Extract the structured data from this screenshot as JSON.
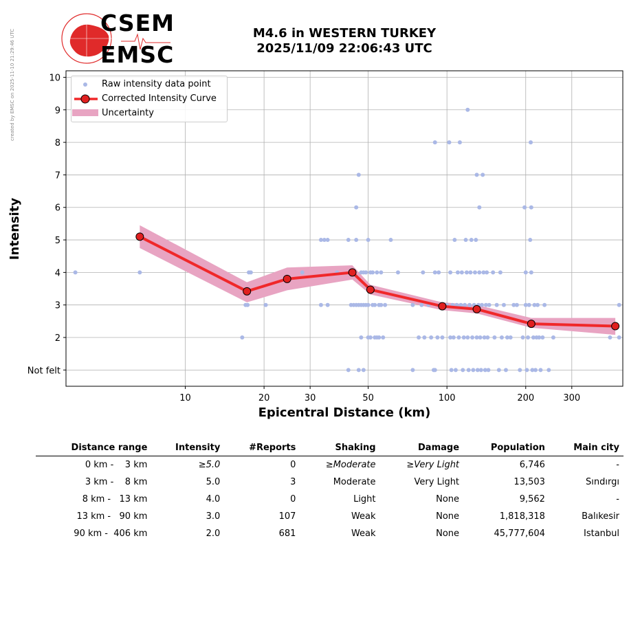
{
  "watermark": "created by EMSC on 2025-11-10 21:29:46 UTC",
  "logo": {
    "line1": "CSEM",
    "line2": "EMSC"
  },
  "title": {
    "line1": "M4.6 in WESTERN TURKEY",
    "line2": "2025/11/09 22:06:43 UTC"
  },
  "legend": {
    "raw": "Raw intensity data point",
    "curve": "Corrected Intensity Curve",
    "uncertainty": "Uncertainty"
  },
  "colors": {
    "raw": "#aab8e6",
    "curve": "#f0282a",
    "marker": "#e02020",
    "uncertainty": "#e8a4c2",
    "grid": "#b0b0b0"
  },
  "chart_data": {
    "type": "scatter",
    "xlabel": "Epicentral Distance (km)",
    "ylabel": "Intensity",
    "x_scale": "log",
    "xlim": [
      3.5,
      470
    ],
    "ylim": [
      0.5,
      10.2
    ],
    "x_ticks": [
      10,
      20,
      30,
      50,
      100,
      200,
      300
    ],
    "y_ticks": [
      {
        "value": 1,
        "label": "Not felt"
      },
      {
        "value": 2,
        "label": "2"
      },
      {
        "value": 3,
        "label": "3"
      },
      {
        "value": 4,
        "label": "4"
      },
      {
        "value": 5,
        "label": "5"
      },
      {
        "value": 6,
        "label": "6"
      },
      {
        "value": 7,
        "label": "7"
      },
      {
        "value": 8,
        "label": "8"
      },
      {
        "value": 9,
        "label": "9"
      },
      {
        "value": 10,
        "label": "10"
      }
    ],
    "grid": true,
    "legend_position": "top-left",
    "curve": {
      "x": [
        6.7,
        17.2,
        24.5,
        43.5,
        51,
        96,
        130,
        210,
        440
      ],
      "y": [
        5.1,
        3.42,
        3.8,
        4.0,
        3.47,
        2.96,
        2.87,
        2.42,
        2.35
      ],
      "upper": [
        5.45,
        3.7,
        4.15,
        4.22,
        3.62,
        3.08,
        3.0,
        2.6,
        2.6
      ],
      "lower": [
        4.75,
        3.08,
        3.45,
        3.78,
        3.32,
        2.84,
        2.74,
        2.3,
        2.08
      ]
    },
    "raw_points": [
      {
        "x": 3.8,
        "y": 4
      },
      {
        "x": 6.7,
        "y": 4
      },
      {
        "x": 16.5,
        "y": 2
      },
      {
        "x": 17,
        "y": 3
      },
      {
        "x": 17.3,
        "y": 3
      },
      {
        "x": 17.5,
        "y": 4
      },
      {
        "x": 17.8,
        "y": 4
      },
      {
        "x": 20.3,
        "y": 3
      },
      {
        "x": 28,
        "y": 4
      },
      {
        "x": 33,
        "y": 3
      },
      {
        "x": 33,
        "y": 5
      },
      {
        "x": 34,
        "y": 5
      },
      {
        "x": 35,
        "y": 3
      },
      {
        "x": 35,
        "y": 5
      },
      {
        "x": 38,
        "y": 4
      },
      {
        "x": 42,
        "y": 1
      },
      {
        "x": 42,
        "y": 5
      },
      {
        "x": 43,
        "y": 3
      },
      {
        "x": 44,
        "y": 3
      },
      {
        "x": 45,
        "y": 3
      },
      {
        "x": 45,
        "y": 5
      },
      {
        "x": 45,
        "y": 6
      },
      {
        "x": 46,
        "y": 3
      },
      {
        "x": 46,
        "y": 7
      },
      {
        "x": 46,
        "y": 1
      },
      {
        "x": 47,
        "y": 2
      },
      {
        "x": 47,
        "y": 3
      },
      {
        "x": 47,
        "y": 4
      },
      {
        "x": 48,
        "y": 1
      },
      {
        "x": 48,
        "y": 3
      },
      {
        "x": 48,
        "y": 4
      },
      {
        "x": 49,
        "y": 3
      },
      {
        "x": 49,
        "y": 4
      },
      {
        "x": 50,
        "y": 5
      },
      {
        "x": 50,
        "y": 2
      },
      {
        "x": 50,
        "y": 3
      },
      {
        "x": 51,
        "y": 4
      },
      {
        "x": 51,
        "y": 2
      },
      {
        "x": 52,
        "y": 3
      },
      {
        "x": 52,
        "y": 4
      },
      {
        "x": 53,
        "y": 2
      },
      {
        "x": 53,
        "y": 3
      },
      {
        "x": 54,
        "y": 4
      },
      {
        "x": 54,
        "y": 2
      },
      {
        "x": 55,
        "y": 3
      },
      {
        "x": 55,
        "y": 2
      },
      {
        "x": 56,
        "y": 3
      },
      {
        "x": 56,
        "y": 4
      },
      {
        "x": 57,
        "y": 2
      },
      {
        "x": 58,
        "y": 3
      },
      {
        "x": 61,
        "y": 5
      },
      {
        "x": 65,
        "y": 4
      },
      {
        "x": 74,
        "y": 3
      },
      {
        "x": 74,
        "y": 1
      },
      {
        "x": 78,
        "y": 2
      },
      {
        "x": 80,
        "y": 3
      },
      {
        "x": 81,
        "y": 4
      },
      {
        "x": 82,
        "y": 2
      },
      {
        "x": 85,
        "y": 3
      },
      {
        "x": 87,
        "y": 2
      },
      {
        "x": 89,
        "y": 1
      },
      {
        "x": 90,
        "y": 4
      },
      {
        "x": 90,
        "y": 8
      },
      {
        "x": 90,
        "y": 1
      },
      {
        "x": 92,
        "y": 2
      },
      {
        "x": 93,
        "y": 4
      },
      {
        "x": 95,
        "y": 3
      },
      {
        "x": 96,
        "y": 2
      },
      {
        "x": 100,
        "y": 3
      },
      {
        "x": 102,
        "y": 8
      },
      {
        "x": 103,
        "y": 2
      },
      {
        "x": 103,
        "y": 4
      },
      {
        "x": 104,
        "y": 1
      },
      {
        "x": 105,
        "y": 3
      },
      {
        "x": 106,
        "y": 2
      },
      {
        "x": 107,
        "y": 5
      },
      {
        "x": 108,
        "y": 1
      },
      {
        "x": 109,
        "y": 3
      },
      {
        "x": 110,
        "y": 4
      },
      {
        "x": 111,
        "y": 2
      },
      {
        "x": 112,
        "y": 8
      },
      {
        "x": 113,
        "y": 3
      },
      {
        "x": 114,
        "y": 4
      },
      {
        "x": 115,
        "y": 1
      },
      {
        "x": 116,
        "y": 2
      },
      {
        "x": 117,
        "y": 3
      },
      {
        "x": 118,
        "y": 5
      },
      {
        "x": 119,
        "y": 4
      },
      {
        "x": 120,
        "y": 9
      },
      {
        "x": 120,
        "y": 2
      },
      {
        "x": 121,
        "y": 1
      },
      {
        "x": 122,
        "y": 3
      },
      {
        "x": 123,
        "y": 4
      },
      {
        "x": 124,
        "y": 5
      },
      {
        "x": 125,
        "y": 2
      },
      {
        "x": 126,
        "y": 1
      },
      {
        "x": 127,
        "y": 3
      },
      {
        "x": 128,
        "y": 4
      },
      {
        "x": 129,
        "y": 5
      },
      {
        "x": 130,
        "y": 2
      },
      {
        "x": 130,
        "y": 7
      },
      {
        "x": 131,
        "y": 1
      },
      {
        "x": 132,
        "y": 3
      },
      {
        "x": 133,
        "y": 4
      },
      {
        "x": 133,
        "y": 6
      },
      {
        "x": 134,
        "y": 2
      },
      {
        "x": 135,
        "y": 1
      },
      {
        "x": 136,
        "y": 3
      },
      {
        "x": 137,
        "y": 7
      },
      {
        "x": 138,
        "y": 4
      },
      {
        "x": 139,
        "y": 2
      },
      {
        "x": 140,
        "y": 1
      },
      {
        "x": 141,
        "y": 3
      },
      {
        "x": 142,
        "y": 4
      },
      {
        "x": 143,
        "y": 2
      },
      {
        "x": 144,
        "y": 1
      },
      {
        "x": 145,
        "y": 3
      },
      {
        "x": 150,
        "y": 4
      },
      {
        "x": 152,
        "y": 2
      },
      {
        "x": 155,
        "y": 3
      },
      {
        "x": 158,
        "y": 1
      },
      {
        "x": 160,
        "y": 4
      },
      {
        "x": 162,
        "y": 2
      },
      {
        "x": 165,
        "y": 3
      },
      {
        "x": 168,
        "y": 1
      },
      {
        "x": 170,
        "y": 2
      },
      {
        "x": 175,
        "y": 2
      },
      {
        "x": 180,
        "y": 3
      },
      {
        "x": 185,
        "y": 3
      },
      {
        "x": 190,
        "y": 1
      },
      {
        "x": 195,
        "y": 2
      },
      {
        "x": 198,
        "y": 6
      },
      {
        "x": 200,
        "y": 3
      },
      {
        "x": 200,
        "y": 4
      },
      {
        "x": 202,
        "y": 1
      },
      {
        "x": 204,
        "y": 2
      },
      {
        "x": 206,
        "y": 3
      },
      {
        "x": 208,
        "y": 5
      },
      {
        "x": 209,
        "y": 8
      },
      {
        "x": 210,
        "y": 6
      },
      {
        "x": 210,
        "y": 4
      },
      {
        "x": 212,
        "y": 1
      },
      {
        "x": 214,
        "y": 2
      },
      {
        "x": 216,
        "y": 3
      },
      {
        "x": 218,
        "y": 1
      },
      {
        "x": 220,
        "y": 2
      },
      {
        "x": 222,
        "y": 3
      },
      {
        "x": 225,
        "y": 2
      },
      {
        "x": 228,
        "y": 1
      },
      {
        "x": 232,
        "y": 2
      },
      {
        "x": 236,
        "y": 3
      },
      {
        "x": 245,
        "y": 1
      },
      {
        "x": 255,
        "y": 2
      },
      {
        "x": 420,
        "y": 2
      },
      {
        "x": 455,
        "y": 3
      },
      {
        "x": 455,
        "y": 2
      }
    ]
  },
  "table": {
    "headers": [
      "Distance range",
      "Intensity",
      "#Reports",
      "Shaking",
      "Damage",
      "Population",
      "Main city"
    ],
    "rows": [
      {
        "range": "0 km -    3 km",
        "intensity": "≥5.0",
        "reports": "0",
        "shaking": "≥Moderate",
        "damage": "≥Very Light",
        "population": "6,746",
        "city": "-"
      },
      {
        "range": "3 km -    8 km",
        "intensity": "5.0",
        "reports": "3",
        "shaking": "Moderate",
        "damage": "Very Light",
        "population": "13,503",
        "city": "Sındırgı"
      },
      {
        "range": "8 km -   13 km",
        "intensity": "4.0",
        "reports": "0",
        "shaking": "Light",
        "damage": "None",
        "population": "9,562",
        "city": "-"
      },
      {
        "range": "13 km -   90 km",
        "intensity": "3.0",
        "reports": "107",
        "shaking": "Weak",
        "damage": "None",
        "population": "1,818,318",
        "city": "Balıkesir"
      },
      {
        "range": "90 km -  406 km",
        "intensity": "2.0",
        "reports": "681",
        "shaking": "Weak",
        "damage": "None",
        "population": "45,777,604",
        "city": "Istanbul"
      }
    ]
  }
}
